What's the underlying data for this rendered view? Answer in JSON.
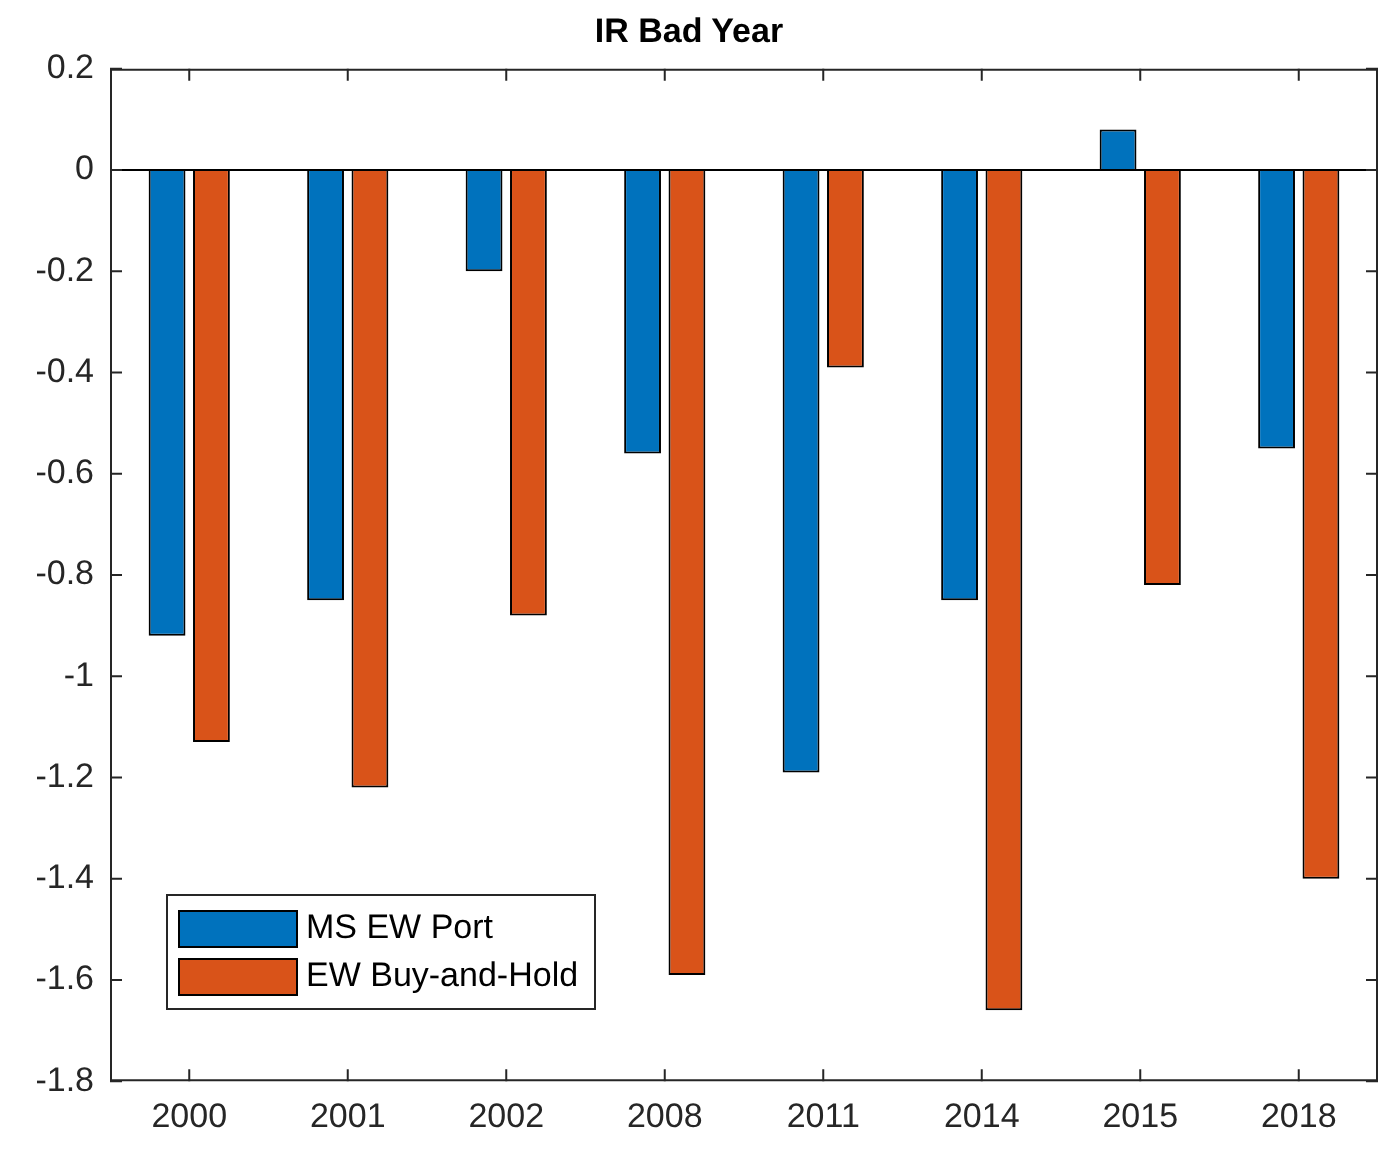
{
  "chart_data": {
    "type": "bar",
    "title": "IR Bad Year",
    "categories": [
      "2000",
      "2001",
      "2002",
      "2008",
      "2011",
      "2014",
      "2015",
      "2018"
    ],
    "series": [
      {
        "name": "MS EW Port",
        "color": "#0072bd",
        "values": [
          -0.92,
          -0.85,
          -0.2,
          -0.56,
          -1.19,
          -0.85,
          0.08,
          -0.55
        ]
      },
      {
        "name": "EW Buy-and-Hold",
        "color": "#d95319",
        "values": [
          -1.13,
          -1.22,
          -0.88,
          -1.59,
          -0.39,
          -1.66,
          -0.82,
          -1.4
        ]
      }
    ],
    "ylim": [
      -1.8,
      0.2
    ],
    "yticks": [
      -1.8,
      -1.6,
      -1.4,
      -1.2,
      -1,
      -0.8,
      -0.6,
      -0.4,
      -0.2,
      0,
      0.2
    ],
    "ref_lines": [
      {
        "axis": "y",
        "value": 0,
        "color": "#000000"
      }
    ],
    "legend": "bottom left"
  }
}
